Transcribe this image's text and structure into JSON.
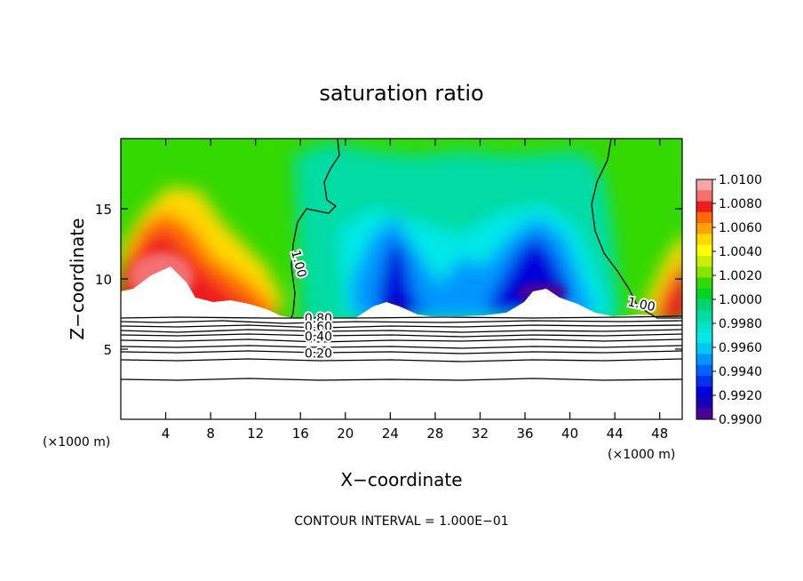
{
  "chart_data": {
    "type": "heatmap",
    "title": "saturation ratio",
    "xlabel": "X−coordinate",
    "ylabel": "Z−coordinate",
    "x_unit_left": "(×1000 m)",
    "x_unit_right": "(×1000 m)",
    "xlim": [
      0,
      50
    ],
    "ylim": [
      0,
      20
    ],
    "x_ticks": [
      {
        "value": 4,
        "label": "4"
      },
      {
        "value": 8,
        "label": "8"
      },
      {
        "value": 12,
        "label": "12"
      },
      {
        "value": 16,
        "label": "16"
      },
      {
        "value": 20,
        "label": "20"
      },
      {
        "value": 24,
        "label": "24"
      },
      {
        "value": 28,
        "label": "28"
      },
      {
        "value": 32,
        "label": "32"
      },
      {
        "value": 36,
        "label": "36"
      },
      {
        "value": 40,
        "label": "40"
      },
      {
        "value": 44,
        "label": "44"
      },
      {
        "value": 48,
        "label": "48"
      }
    ],
    "y_ticks": [
      {
        "value": 5,
        "label": "5"
      },
      {
        "value": 10,
        "label": "10"
      },
      {
        "value": 15,
        "label": "15"
      }
    ],
    "colorbar": {
      "min": 0.99,
      "max": 1.01,
      "labels": [
        "1.0100",
        "1.0080",
        "1.0060",
        "1.0040",
        "1.0020",
        "1.0000",
        "0.9980",
        "0.9960",
        "0.9940",
        "0.9920",
        "0.9900"
      ],
      "colors": [
        "#f7a5a5",
        "#f56f6f",
        "#ee1c1c",
        "#ff6a00",
        "#ffa200",
        "#ffd800",
        "#ffff00",
        "#c8f000",
        "#88e400",
        "#33d900",
        "#00d427",
        "#00d56f",
        "#00dca3",
        "#00e4c8",
        "#00e8e8",
        "#00c8f5",
        "#0096ff",
        "#0064ff",
        "#0032f0",
        "#0000dc",
        "#1800b8",
        "#4b0096"
      ]
    },
    "contour_labels": [
      {
        "text": "1.00",
        "x": 15.5,
        "z": 11.0
      },
      {
        "text": "1.00",
        "x": 46.3,
        "z": 7.9
      },
      {
        "text": "0.80",
        "x": 17.6,
        "z": 6.9
      },
      {
        "text": "0.60",
        "x": 17.6,
        "z": 6.3
      },
      {
        "text": "0.40",
        "x": 17.6,
        "z": 5.6
      },
      {
        "text": "0.20",
        "x": 17.6,
        "z": 4.4
      }
    ],
    "footer": "CONTOUR INTERVAL = 1.000E−01",
    "grid": false
  }
}
